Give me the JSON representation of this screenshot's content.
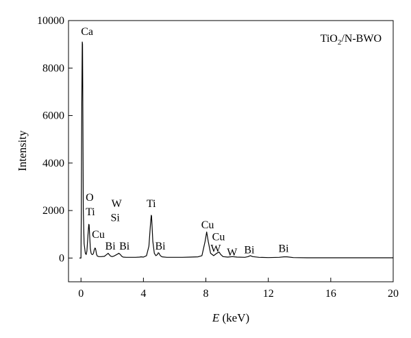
{
  "chart_data": {
    "type": "line",
    "legend": {
      "text": "TiO",
      "sub": "2",
      "tail": "/N-BWO",
      "position": "top-right"
    },
    "xlabel": {
      "italic": "E",
      "rest": " (keV)"
    },
    "ylabel": "Intensity",
    "xlim": [
      -0.8,
      20
    ],
    "ylim": [
      -1000,
      10000
    ],
    "xticks": [
      0,
      4,
      8,
      12,
      16,
      20
    ],
    "yticks": [
      0,
      2000,
      4000,
      6000,
      8000,
      10000
    ],
    "grid": false,
    "series": [
      {
        "color": "#000000",
        "x": [
          -0.1,
          0.0,
          0.02,
          0.05,
          0.08,
          0.1,
          0.12,
          0.15,
          0.2,
          0.28,
          0.33,
          0.38,
          0.45,
          0.5,
          0.52,
          0.55,
          0.6,
          0.65,
          0.7,
          0.75,
          0.8,
          0.85,
          0.9,
          0.93,
          0.96,
          1.0,
          1.05,
          1.15,
          1.3,
          1.5,
          1.65,
          1.74,
          1.8,
          1.9,
          2.0,
          2.1,
          2.3,
          2.42,
          2.52,
          2.6,
          2.7,
          2.9,
          3.2,
          3.5,
          3.75,
          3.85,
          4.0,
          4.2,
          4.35,
          4.45,
          4.5,
          4.52,
          4.55,
          4.6,
          4.7,
          4.8,
          4.9,
          4.95,
          5.0,
          5.08,
          5.2,
          5.5,
          6.0,
          6.5,
          7.0,
          7.5,
          7.75,
          7.95,
          8.05,
          8.15,
          8.3,
          8.5,
          8.7,
          8.85,
          8.95,
          9.1,
          9.4,
          9.7,
          10.0,
          10.5,
          10.7,
          10.85,
          11.0,
          11.4,
          12.0,
          12.7,
          13.0,
          13.2,
          13.6,
          14.5,
          16.0,
          18.0,
          20.0
        ],
        "y": [
          0,
          0,
          2000,
          6500,
          9100,
          9000,
          6000,
          2000,
          600,
          200,
          150,
          300,
          1000,
          1420,
          1400,
          1000,
          400,
          200,
          150,
          150,
          200,
          350,
          420,
          400,
          300,
          150,
          80,
          60,
          60,
          70,
          150,
          200,
          150,
          80,
          60,
          80,
          150,
          200,
          150,
          80,
          40,
          30,
          30,
          30,
          40,
          50,
          40,
          100,
          500,
          1400,
          1800,
          1780,
          1400,
          700,
          200,
          100,
          150,
          220,
          200,
          100,
          50,
          30,
          30,
          30,
          40,
          50,
          100,
          700,
          1100,
          700,
          200,
          100,
          200,
          250,
          150,
          60,
          40,
          60,
          40,
          30,
          60,
          100,
          60,
          30,
          20,
          30,
          50,
          50,
          20,
          10,
          10,
          10,
          10
        ]
      }
    ],
    "annotations": [
      {
        "text": "Ca",
        "x": 0.0,
        "y": 9400
      },
      {
        "text": "O",
        "x": 0.3,
        "y": 2400
      },
      {
        "text": "Ti",
        "x": 0.3,
        "y": 1800
      },
      {
        "text": "Cu",
        "x": 0.7,
        "y": 850
      },
      {
        "text": "Bi",
        "x": 1.55,
        "y": 350
      },
      {
        "text": "W",
        "x": 1.95,
        "y": 2150
      },
      {
        "text": "Si",
        "x": 1.9,
        "y": 1550
      },
      {
        "text": "Bi",
        "x": 2.45,
        "y": 350
      },
      {
        "text": "Ti",
        "x": 4.2,
        "y": 2150
      },
      {
        "text": "Bi",
        "x": 4.75,
        "y": 350
      },
      {
        "text": "Cu",
        "x": 7.7,
        "y": 1250
      },
      {
        "text": "Cu",
        "x": 8.4,
        "y": 750
      },
      {
        "text": "W",
        "x": 8.3,
        "y": 250
      },
      {
        "text": "W",
        "x": 9.35,
        "y": 100
      },
      {
        "text": "Bi",
        "x": 10.45,
        "y": 200
      },
      {
        "text": "Bi",
        "x": 12.65,
        "y": 250
      }
    ]
  }
}
